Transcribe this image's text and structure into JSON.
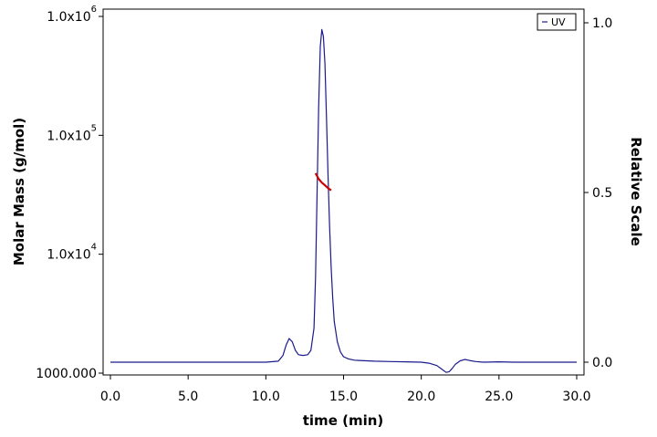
{
  "chart_data": {
    "type": "line",
    "xlabel": "time (min)",
    "ylabel_left": "Molar Mass (g/mol)",
    "ylabel_right": "Relative Scale",
    "xlim": [
      0,
      30
    ],
    "x_ticks": [
      "0.0",
      "5.0",
      "10.0",
      "15.0",
      "20.0",
      "25.0",
      "30.0"
    ],
    "y_left_scale": "log",
    "y_left_lim": [
      1000,
      1000000
    ],
    "y_left_ticks": [
      {
        "value": 1000000,
        "base": "1.0x10",
        "exp": "6"
      },
      {
        "value": 100000,
        "base": "1.0x10",
        "exp": "5"
      },
      {
        "value": 10000,
        "base": "1.0x10",
        "exp": "4"
      },
      {
        "value": 1000,
        "base": "1000.000",
        "exp": ""
      }
    ],
    "y_right_lim": [
      0,
      1.0
    ],
    "y_right_ticks": [
      "0.0",
      "0.5",
      "1.0"
    ],
    "legend": {
      "position": "top-right",
      "entries": [
        {
          "name": "UV",
          "color": "#1a1a8c"
        }
      ]
    },
    "series": [
      {
        "name": "UV",
        "axis": "right",
        "color": "#1a1a8c",
        "x": [
          0.0,
          2.0,
          5.0,
          8.0,
          10.0,
          10.8,
          11.1,
          11.3,
          11.5,
          11.7,
          11.9,
          12.1,
          12.4,
          12.7,
          12.9,
          13.1,
          13.2,
          13.3,
          13.4,
          13.5,
          13.6,
          13.7,
          13.8,
          13.9,
          14.0,
          14.1,
          14.2,
          14.3,
          14.4,
          14.6,
          14.8,
          15.0,
          15.3,
          15.7,
          16.0,
          17.0,
          18.0,
          19.0,
          20.0,
          20.5,
          21.0,
          21.3,
          21.6,
          21.8,
          22.0,
          22.2,
          22.5,
          22.8,
          23.1,
          23.5,
          24.0,
          25.0,
          26.0,
          27.0,
          28.0,
          29.0,
          30.0
        ],
        "y": [
          0.0,
          0.0,
          0.0,
          0.0,
          0.0,
          0.003,
          0.02,
          0.05,
          0.07,
          0.06,
          0.035,
          0.022,
          0.02,
          0.022,
          0.035,
          0.1,
          0.25,
          0.5,
          0.75,
          0.93,
          0.98,
          0.96,
          0.88,
          0.72,
          0.55,
          0.4,
          0.28,
          0.19,
          0.12,
          0.06,
          0.03,
          0.016,
          0.01,
          0.006,
          0.005,
          0.003,
          0.002,
          0.001,
          0.0,
          -0.003,
          -0.01,
          -0.02,
          -0.03,
          -0.028,
          -0.018,
          -0.006,
          0.004,
          0.008,
          0.005,
          0.002,
          0.0,
          0.001,
          0.0,
          0.0,
          0.0,
          0.0,
          0.0
        ]
      },
      {
        "name": "Molar Mass",
        "axis": "left",
        "color": "#cc0000",
        "x": [
          13.2,
          13.4,
          13.6,
          13.8,
          14.0,
          14.2
        ],
        "y": [
          48000,
          43000,
          40000,
          38000,
          36000,
          34500
        ]
      }
    ]
  }
}
